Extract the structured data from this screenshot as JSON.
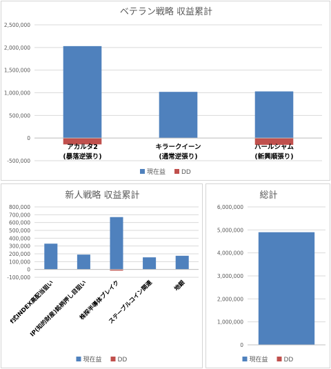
{
  "colors": {
    "current": "#4f81bd",
    "dd": "#c0504d",
    "grid": "#d9d9d9",
    "axis_red": "#ff0000"
  },
  "legend": {
    "current_label": "現在益",
    "dd_label": "DD"
  },
  "chart_data": [
    {
      "type": "bar",
      "title": "ベテラン戦略 収益累計",
      "categories": [
        "アカルタ2\n(暴落逆張り)",
        "キラークイーン\n(通常逆張り)",
        "ハールシャム\n(新興順張り)"
      ],
      "series": [
        {
          "name": "現在益",
          "values": [
            2030000,
            1020000,
            1030000
          ]
        },
        {
          "name": "DD",
          "values": [
            -140000,
            0,
            -150000
          ]
        }
      ],
      "ylim": [
        -500000,
        2500000
      ],
      "yticks": [
        2500000,
        2000000,
        1500000,
        1000000,
        500000,
        0,
        -500000
      ],
      "ytick_labels": [
        "2,500,000",
        "2,000,000",
        "1,500,000",
        "1,000,000",
        "500,000",
        "0",
        "-500,000"
      ],
      "grid": true,
      "legend_position": "bottom"
    },
    {
      "type": "bar",
      "title": "新人戦略 収益累計",
      "categories": [
        "f式INDEX高配当狙い",
        "IP(知的財産)銘柄押し目狙い",
        "株探半導体ブレイク",
        "ステーブルコイン関連",
        "地銀"
      ],
      "series": [
        {
          "name": "現在益",
          "values": [
            330000,
            190000,
            670000,
            155000,
            175000
          ]
        },
        {
          "name": "DD",
          "values": [
            0,
            0,
            -15000,
            0,
            0
          ]
        }
      ],
      "ylim": [
        -100000,
        800000
      ],
      "yticks": [
        800000,
        700000,
        600000,
        500000,
        400000,
        300000,
        200000,
        100000,
        0,
        -100000
      ],
      "ytick_labels": [
        "800,000",
        "700,000",
        "600,000",
        "500,000",
        "400,000",
        "300,000",
        "200,000",
        "100,000",
        "0",
        "-100,000"
      ],
      "grid": true,
      "legend_position": "bottom"
    },
    {
      "type": "bar",
      "title": "総計",
      "categories": [
        ""
      ],
      "series": [
        {
          "name": "現在益",
          "values": [
            4900000
          ]
        },
        {
          "name": "DD",
          "values": [
            0
          ]
        }
      ],
      "ylim": [
        0,
        6000000
      ],
      "yticks": [
        6000000,
        5000000,
        4000000,
        3000000,
        2000000,
        1000000,
        0
      ],
      "ytick_labels": [
        "6,000,000",
        "5,000,000",
        "4,000,000",
        "3,000,000",
        "2,000,000",
        "1,000,000",
        "0"
      ],
      "grid": true,
      "legend_position": "bottom"
    }
  ]
}
